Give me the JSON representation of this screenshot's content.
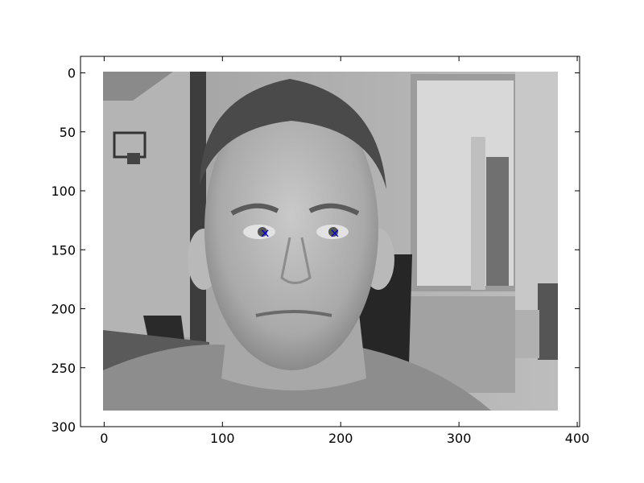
{
  "chart_data": {
    "type": "scatter",
    "title": "",
    "xlabel": "",
    "ylabel": "",
    "xlim": [
      -20,
      402
    ],
    "ylim": [
      300,
      -14
    ],
    "y_inverted": true,
    "x_ticks": [
      0,
      100,
      200,
      300,
      400
    ],
    "y_ticks": [
      0,
      50,
      100,
      150,
      200,
      250,
      300
    ],
    "x_tick_labels": [
      "0",
      "100",
      "200",
      "300",
      "400"
    ],
    "y_tick_labels": [
      "0",
      "50",
      "100",
      "150",
      "200",
      "250",
      "300"
    ],
    "image": {
      "kind": "grayscale photograph of a man's face in an office",
      "extent_x": [
        0,
        383
      ],
      "extent_y": [
        0,
        286
      ]
    },
    "series": [
      {
        "marker": "x",
        "color": "#0000cc",
        "points": [
          {
            "x": 136,
            "y": 136
          },
          {
            "x": 195,
            "y": 136
          }
        ]
      }
    ],
    "grid": false,
    "legend": "none"
  }
}
